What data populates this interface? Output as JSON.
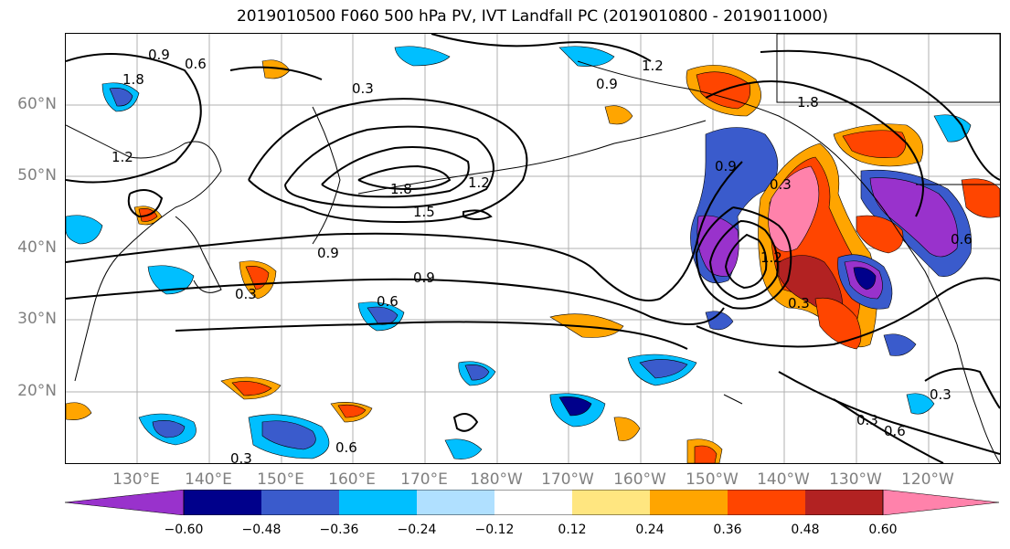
{
  "title": "2019010500 F060 500 hPa PV, IVT Landfall PC (2019010800 - 2019011000)",
  "lat_labels": [
    "60°N",
    "50°N",
    "40°N",
    "30°N",
    "20°N"
  ],
  "lon_labels": [
    "130°E",
    "140°E",
    "150°E",
    "160°E",
    "170°E",
    "180°W",
    "170°W",
    "160°W",
    "150°W",
    "140°W",
    "130°W",
    "120°W"
  ],
  "colorbar": {
    "ticks": [
      "−0.60",
      "−0.48",
      "−0.36",
      "−0.24",
      "−0.12",
      "0.12",
      "0.24",
      "0.36",
      "0.48",
      "0.60"
    ],
    "colors": [
      "#9932CC",
      "#00008B",
      "#3A5BCC",
      "#00BFFF",
      "#B0E0FF",
      "#FFFFFF",
      "#FFE680",
      "#FFA500",
      "#FF4500",
      "#B22222",
      "#FF82AB"
    ]
  },
  "contour_labels": [
    "0.9",
    "1.8",
    "0.6",
    "1.2",
    "0.3",
    "1.8",
    "1.5",
    "1.2",
    "0.9",
    "0.6",
    "0.3",
    "0.9",
    "1.2",
    "1.8",
    "0.3",
    "0.6",
    "0.9",
    "1.2",
    "0.3",
    "0.6",
    "0.3",
    "0.6",
    "0.3",
    "0.3",
    "0.9"
  ]
}
